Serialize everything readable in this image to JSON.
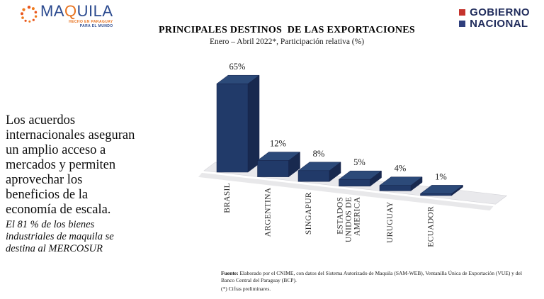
{
  "header": {
    "maquila_logo": {
      "word_prefix": "MA",
      "word_q": "Q",
      "word_suffix": "UILA",
      "tagline_line1": "HECHO EN PARAGUAY",
      "tagline_line2": "PARA EL MUNDO",
      "blue": "#2b4a8f",
      "orange": "#e87320"
    },
    "gobierno_logo": {
      "line1": "GOBIERNO",
      "line2": "NACIONAL",
      "red_square": "#c5332d",
      "blue_square": "#2f3f7d",
      "text_color": "#1f2b5b"
    }
  },
  "title": "PRINCIPALES DESTINOS  DE LAS EXPORTACIONES",
  "subtitle": "Enero – Abril 2022*, Participación relativa (%)",
  "left_text": {
    "paragraph_lines": [
      "Los acuerdos",
      "internacionales aseguran",
      "un amplio acceso a",
      "mercados y permiten",
      "aprovechar los",
      "beneficios de la",
      "economía de escala."
    ],
    "note_lines": [
      "El 81 % de los bienes",
      "industriales de maquila se",
      "destina al MERCOSUR"
    ]
  },
  "chart_data": {
    "type": "bar",
    "style": "3d-column",
    "title": "PRINCIPALES DESTINOS  DE LAS EXPORTACIONES",
    "subtitle": "Enero – Abril 2022*, Participación relativa (%)",
    "unit": "%",
    "categories": [
      "BRASIL",
      "ARGENTINA",
      "SINGAPUR",
      "ESTADOS UNIDOS DE AMERICA",
      "URUGUAY",
      "ECUADOR"
    ],
    "category_display_lines": [
      [
        "BRASIL"
      ],
      [
        "ARGENTINA"
      ],
      [
        "SINGAPUR"
      ],
      [
        "ESTADOS",
        "UNIDOS DE",
        "AMERICA"
      ],
      [
        "URUGUAY"
      ],
      [
        "ECUADOR"
      ]
    ],
    "values": [
      65,
      12,
      8,
      5,
      4,
      1
    ],
    "value_labels": [
      "65%",
      "12%",
      "8%",
      "5%",
      "4%",
      "1%"
    ],
    "ylim": [
      0,
      65
    ],
    "grid": false,
    "legend": false,
    "colors": {
      "bar_front": "#213a69",
      "bar_top": "#2c4a79",
      "bar_side": "#18294f",
      "bar_edge": "#14224a",
      "floor": "#e9e9ec",
      "floor_edge": "#d4d4d9",
      "floor_shadow": "#dedee1",
      "label_text": "#303030",
      "value_text": "#1a1a1a"
    }
  },
  "footer": {
    "source_label": "Fuente:",
    "source_text": " Elaborado por el CNIME, con datos del Sistema Autorizado de Maquila (SAM-WEB), Ventanilla Única de Exportación (VUE) y del Banco Central del Paraguay (BCP).",
    "note": "(*) Cifras preliminares."
  }
}
